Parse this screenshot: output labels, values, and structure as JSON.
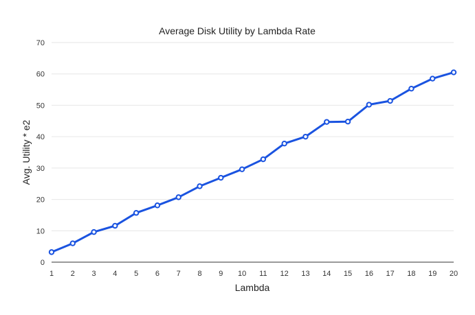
{
  "chart_data": {
    "type": "line",
    "title": "Average Disk Utility by Lambda Rate",
    "xlabel": "Lambda",
    "ylabel": "Avg. Utility * e2",
    "x": [
      1,
      2,
      3,
      4,
      5,
      6,
      7,
      8,
      9,
      10,
      11,
      12,
      13,
      14,
      15,
      16,
      17,
      18,
      19,
      20
    ],
    "series": [
      {
        "values": [
          3.2,
          6.0,
          9.6,
          11.6,
          15.7,
          18.1,
          20.7,
          24.2,
          26.9,
          29.6,
          32.8,
          37.8,
          40.0,
          44.7,
          44.8,
          50.2,
          51.4,
          55.3,
          58.5,
          60.5
        ],
        "color": "#1a53e0"
      }
    ],
    "ylim": [
      0,
      70
    ],
    "yticks": [
      0,
      10,
      20,
      30,
      40,
      50,
      60,
      70
    ],
    "xticks": [
      1,
      2,
      3,
      4,
      5,
      6,
      7,
      8,
      9,
      10,
      11,
      12,
      13,
      14,
      15,
      16,
      17,
      18,
      19,
      20
    ],
    "grid": true,
    "legend": "none"
  }
}
